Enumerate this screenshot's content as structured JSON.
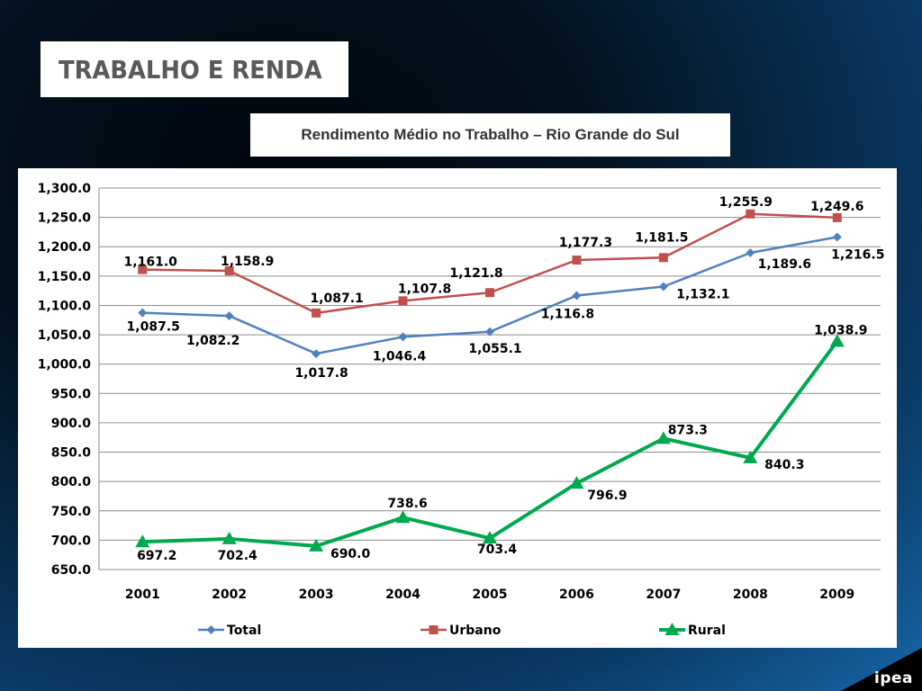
{
  "header": {
    "section_title": "TRABALHO E RENDA"
  },
  "logo": {
    "text": "ipea"
  },
  "colors": {
    "total": "#4f81bd",
    "urbano": "#c0504d",
    "rural": "#00a94f"
  },
  "chart_data": {
    "type": "line",
    "title": "Rendimento Médio no Trabalho – Rio Grande do Sul",
    "xlabel": "",
    "ylabel": "",
    "categories": [
      "2001",
      "2002",
      "2003",
      "2004",
      "2005",
      "2006",
      "2007",
      "2008",
      "2009"
    ],
    "ylim": [
      650,
      1300
    ],
    "ytick_step": 50,
    "grid": true,
    "legend_position": "bottom",
    "series": [
      {
        "name": "Total",
        "marker": "diamond",
        "color": "#4f81bd",
        "values": [
          1087.5,
          1082.2,
          1017.8,
          1046.4,
          1055.1,
          1116.8,
          1132.1,
          1189.6,
          1216.5
        ],
        "labels": [
          "1,087.5",
          "1,082.2",
          "1,017.8",
          "1,046.4",
          "1,055.1",
          "1,116.8",
          "1,132.1",
          "1,189.6",
          "1,216.5"
        ]
      },
      {
        "name": "Urbano",
        "marker": "square",
        "color": "#c0504d",
        "values": [
          1161.0,
          1158.9,
          1087.1,
          1107.8,
          1121.8,
          1177.3,
          1181.5,
          1255.9,
          1249.6
        ],
        "labels": [
          "1,161.0",
          "1,158.9",
          "1,087.1",
          "1,107.8",
          "1,121.8",
          "1,177.3",
          "1,181.5",
          "1,255.9",
          "1,249.6"
        ]
      },
      {
        "name": "Rural",
        "marker": "triangle",
        "color": "#00a94f",
        "values": [
          697.2,
          702.4,
          690.0,
          738.6,
          703.4,
          796.9,
          873.3,
          840.3,
          1038.9
        ],
        "labels": [
          "697.2",
          "702.4",
          "690.0",
          "738.6",
          "703.4",
          "796.9",
          "873.3",
          "840.3",
          "1,038.9"
        ]
      }
    ]
  }
}
